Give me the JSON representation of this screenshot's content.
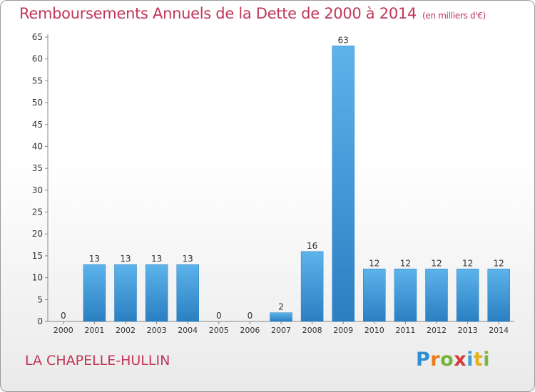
{
  "title": "Remboursements Annuels de la Dette de 2000 à 2014",
  "unit": "(en milliers d'€)",
  "commune": "LA CHAPELLE-HULLIN",
  "logo": [
    "P",
    "r",
    "o",
    "x",
    "i",
    "t",
    "i"
  ],
  "colors": {
    "title": "#c13659",
    "bar_light": "#5db3ea",
    "bar_dark": "#2a7fc2"
  },
  "chart_data": {
    "type": "bar",
    "categories": [
      "2000",
      "2001",
      "2002",
      "2003",
      "2004",
      "2005",
      "2006",
      "2007",
      "2008",
      "2009",
      "2010",
      "2011",
      "2012",
      "2013",
      "2014"
    ],
    "values": [
      0,
      13,
      13,
      13,
      13,
      0,
      0,
      2,
      16,
      63,
      12,
      12,
      12,
      12,
      12
    ],
    "ylim": [
      0,
      65
    ],
    "yticks": [
      0,
      5,
      10,
      15,
      20,
      25,
      30,
      35,
      40,
      45,
      50,
      55,
      60,
      65
    ],
    "grid": false,
    "legend": "none"
  }
}
